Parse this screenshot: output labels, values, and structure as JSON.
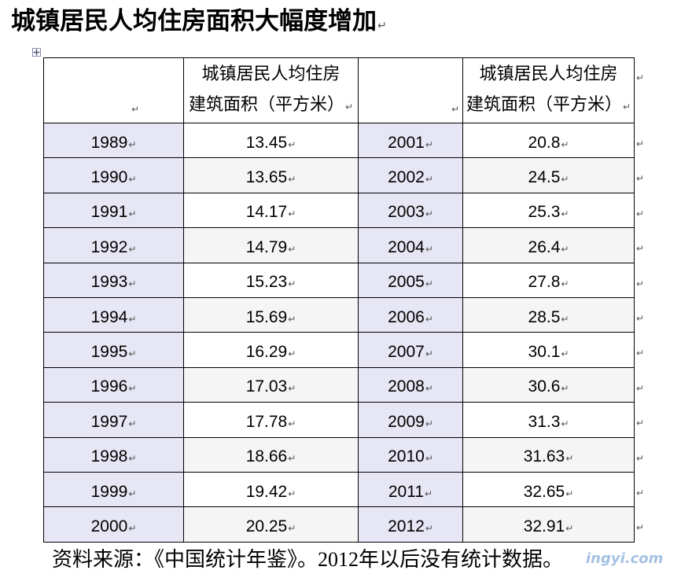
{
  "document": {
    "title": "城镇居民人均住房面积大幅度增加",
    "footnote": "资料来源：《中国统计年鉴》。2012年以后没有统计数据。",
    "watermark": "ingyi.com"
  },
  "format_marks": {
    "paragraph": "↵"
  },
  "icons": {
    "table_handle": "table-move-handle-icon",
    "paragraph_mark": "paragraph-mark-icon"
  },
  "table": {
    "header": {
      "area_label_lines": [
        "城镇居民人均住房",
        "建筑面积（平方米）"
      ]
    },
    "rows": [
      [
        1989,
        13.45,
        2001,
        20.8
      ],
      [
        1990,
        13.65,
        2002,
        24.5
      ],
      [
        1991,
        14.17,
        2003,
        25.3
      ],
      [
        1992,
        14.79,
        2004,
        26.4
      ],
      [
        1993,
        15.23,
        2005,
        27.8
      ],
      [
        1994,
        15.69,
        2006,
        28.5
      ],
      [
        1995,
        16.29,
        2007,
        30.1
      ],
      [
        1996,
        17.03,
        2008,
        30.6
      ],
      [
        1997,
        17.78,
        2009,
        31.3
      ],
      [
        1998,
        18.66,
        2010,
        31.63
      ],
      [
        1999,
        19.42,
        2011,
        32.65
      ],
      [
        2000,
        20.25,
        2012,
        32.91
      ]
    ]
  },
  "colors": {
    "key_column_fill": "#e6e6f4",
    "alt_row_fill": "#f5f5f5",
    "border": "#000000",
    "paragraph_mark": "#555555",
    "watermark": "#8fb3dd"
  }
}
